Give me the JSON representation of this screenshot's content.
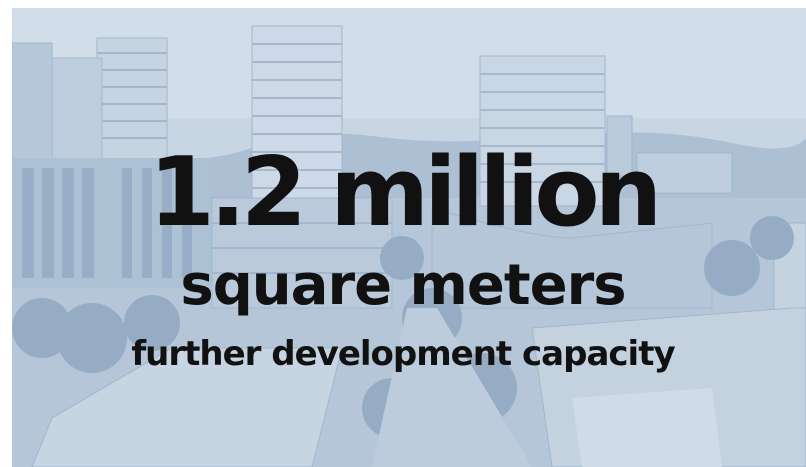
{
  "slide": {
    "line1": "1.2 million",
    "line2": "square meters",
    "line3": "further development capacity"
  },
  "colors": {
    "text": "#111111",
    "tint": "#b9c9da",
    "accent": "#7d97b6"
  }
}
